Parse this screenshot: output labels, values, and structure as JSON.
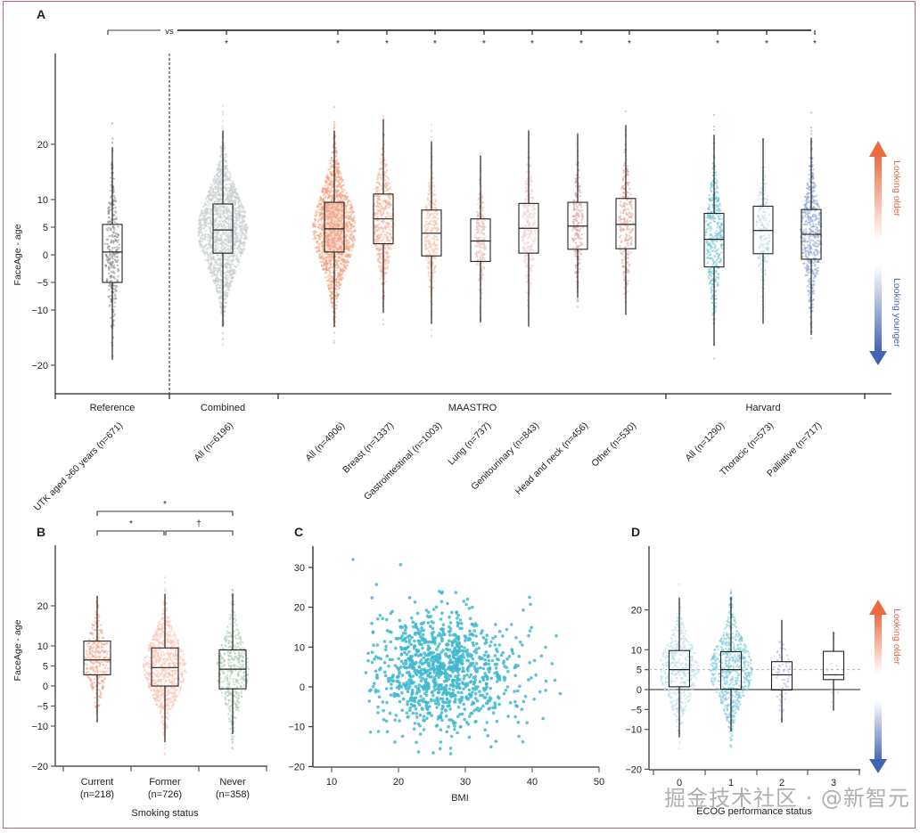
{
  "watermark": "掘金技术社区 · @新智元",
  "annotations": {
    "looking_older": "Looking older",
    "looking_younger": "Looking younger",
    "older_color": "#e8603c",
    "younger_color": "#3b62b0"
  },
  "chart_data": [
    {
      "panel": "A",
      "type": "box",
      "ylabel": "FaceAge - age",
      "yticks": [
        20,
        10,
        5,
        0,
        -5,
        -10,
        -20
      ],
      "ylim": [
        -25,
        37
      ],
      "comparison_label": "vs",
      "significance_marker": "*",
      "groups": [
        {
          "name": "Reference",
          "categories": [
            "UTK aged ≥60 years (n=671)"
          ]
        },
        {
          "name": "Combined",
          "categories": [
            "All (n=6196)"
          ]
        },
        {
          "name": "MAASTRO",
          "categories": [
            "All (n=4906)",
            "Breast (n=1337)",
            "Gastrointestinal (n=1003)",
            "Lung (n=737)",
            "Genitourinary (n=843)",
            "Head and neck (n=456)",
            "Other (n=530)"
          ]
        },
        {
          "name": "Harvard",
          "categories": [
            "All (n=1290)",
            "Thoracic (n=573)",
            "Palliative (n=717)"
          ]
        }
      ],
      "boxes": [
        {
          "label": "UTK aged ≥60 years (n=671)",
          "q1": -5,
          "median": 0.5,
          "q3": 5.5,
          "whisker_low": -19,
          "whisker_high": 19.5,
          "color": "#888888",
          "sig": ""
        },
        {
          "label": "All (n=6196)",
          "q1": 0.3,
          "median": 4.5,
          "q3": 9.2,
          "whisker_low": -13,
          "whisker_high": 22.5,
          "color": "#c9cdd0",
          "sig": "*"
        },
        {
          "label": "All (n=4906)",
          "q1": 0.5,
          "median": 4.7,
          "q3": 9.5,
          "whisker_low": -13,
          "whisker_high": 22.5,
          "color": "#f0a080",
          "sig": "*"
        },
        {
          "label": "Breast (n=1337)",
          "q1": 2,
          "median": 6.5,
          "q3": 11,
          "whisker_low": -10.5,
          "whisker_high": 24.5,
          "color": "#f3b39b",
          "sig": "*"
        },
        {
          "label": "Gastrointestinal (n=1003)",
          "q1": -0.2,
          "median": 3.9,
          "q3": 8.1,
          "whisker_low": -12.5,
          "whisker_high": 20.5,
          "color": "#f5c2b0",
          "sig": "*"
        },
        {
          "label": "Lung (n=737)",
          "q1": -1.2,
          "median": 2.5,
          "q3": 6.5,
          "whisker_low": -12.2,
          "whisker_high": 18,
          "color": "#e8c3c0",
          "sig": "*"
        },
        {
          "label": "Genitourinary (n=843)",
          "q1": 0.3,
          "median": 4.8,
          "q3": 9.3,
          "whisker_low": -13,
          "whisker_high": 22.5,
          "color": "#f0d0d0",
          "sig": "*"
        },
        {
          "label": "Head and neck (n=456)",
          "q1": 1,
          "median": 5.2,
          "q3": 9.5,
          "whisker_low": -7.8,
          "whisker_high": 22,
          "color": "#d9a0a5",
          "sig": "*"
        },
        {
          "label": "Other (n=530)",
          "q1": 1.1,
          "median": 5.5,
          "q3": 10.2,
          "whisker_low": -10.8,
          "whisker_high": 23.5,
          "color": "#e0a0a0",
          "sig": "*"
        },
        {
          "label": "All (n=1290)",
          "q1": -2.2,
          "median": 2.8,
          "q3": 7.5,
          "whisker_low": -16.5,
          "whisker_high": 21.7,
          "color": "#6cc3d5",
          "sig": "*"
        },
        {
          "label": "Thoracic (n=573)",
          "q1": 0.2,
          "median": 4.4,
          "q3": 8.8,
          "whisker_low": -12.5,
          "whisker_high": 21.1,
          "color": "#b9dde6",
          "sig": "*"
        },
        {
          "label": "Palliative (n=717)",
          "q1": -0.8,
          "median": 3.7,
          "q3": 8.2,
          "whisker_low": -14.5,
          "whisker_high": 21.2,
          "color": "#8b9ed2",
          "sig": "*"
        }
      ]
    },
    {
      "panel": "B",
      "type": "box",
      "ylabel": "FaceAge - age",
      "xlabel": "Smoking status",
      "yticks": [
        20,
        10,
        5,
        0,
        -5,
        -10,
        -20
      ],
      "ylim": [
        -20,
        33
      ],
      "brackets": [
        {
          "from": "Current",
          "to": "Never",
          "marker": "*"
        },
        {
          "from": "Current",
          "to": "Former",
          "marker": "*"
        },
        {
          "from": "Former",
          "to": "Never",
          "marker": "†"
        }
      ],
      "boxes": [
        {
          "label": "Current",
          "n": "(n=218)",
          "q1": 2.8,
          "median": 6.5,
          "q3": 11.2,
          "whisker_low": -9,
          "whisker_high": 22.5,
          "color": "#f0a488"
        },
        {
          "label": "Former",
          "n": "(n=726)",
          "q1": 0,
          "median": 4.6,
          "q3": 9.5,
          "whisker_low": -14,
          "whisker_high": 23,
          "color": "#f7c4b2"
        },
        {
          "label": "Never",
          "n": "(n=358)",
          "q1": -0.7,
          "median": 4.2,
          "q3": 9,
          "whisker_low": -12,
          "whisker_high": 23,
          "color": "#a7c9b2"
        }
      ]
    },
    {
      "panel": "C",
      "type": "scatter",
      "xlabel": "BMI",
      "ylabel": "",
      "xticks": [
        10,
        20,
        30,
        40,
        50
      ],
      "yticks": [
        30,
        20,
        10,
        0,
        -10,
        -20
      ],
      "xlim": [
        7,
        50
      ],
      "ylim": [
        -20,
        35
      ],
      "color": "#3fb8cf",
      "n_points": 1100,
      "x_center": 26,
      "x_sd": 5,
      "y_center": 4,
      "y_sd": 7,
      "notable_points": [
        [
          13.2,
          32
        ],
        [
          20.3,
          30.7
        ],
        [
          16.7,
          25.7
        ],
        [
          39.6,
          22.5
        ],
        [
          43.6,
          12.8
        ],
        [
          44.2,
          -1.7
        ],
        [
          38.6,
          -13.8
        ],
        [
          23,
          -16.3
        ],
        [
          27.8,
          -15.4
        ]
      ]
    },
    {
      "panel": "D",
      "type": "box",
      "xlabel": "ECOG performance status",
      "ylabel": "",
      "yticks": [
        20,
        10,
        5,
        0,
        -5,
        -10,
        -20
      ],
      "ylim": [
        -20,
        33
      ],
      "reference_lines": [
        {
          "y": 0,
          "style": "solid"
        },
        {
          "y": 5,
          "style": "dashed"
        }
      ],
      "boxes": [
        {
          "label": "0",
          "q1": 0.7,
          "median": 5,
          "q3": 9.8,
          "whisker_low": -12,
          "whisker_high": 23,
          "color": "#b9dde6"
        },
        {
          "label": "1",
          "q1": 0.1,
          "median": 5,
          "q3": 9.5,
          "whisker_low": -10.5,
          "whisker_high": 23.2,
          "color": "#79c7d8"
        },
        {
          "label": "2",
          "q1": -0.1,
          "median": 3.7,
          "q3": 7,
          "whisker_low": -8.3,
          "whisker_high": 17.5,
          "color": "#a8b3d8"
        },
        {
          "label": "3",
          "q1": 2.5,
          "median": 3.7,
          "q3": 9.6,
          "whisker_low": -5.3,
          "whisker_high": 14.5,
          "color": "#c0c8e0"
        }
      ]
    }
  ]
}
